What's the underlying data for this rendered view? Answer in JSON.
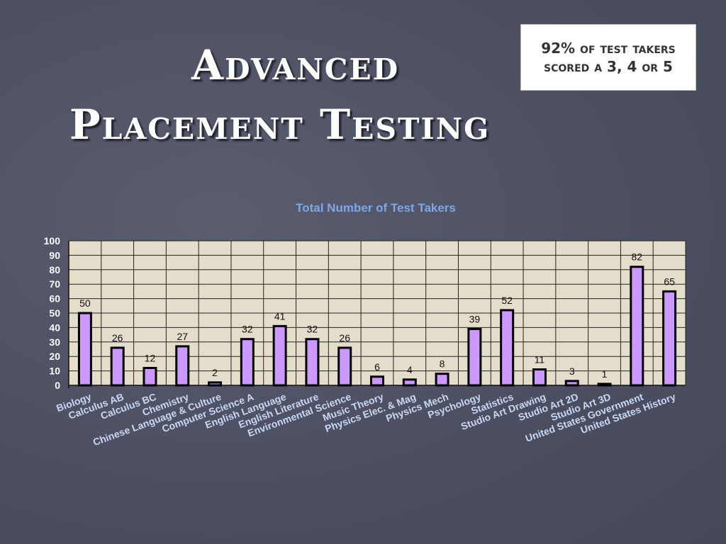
{
  "slide": {
    "title_line1": "Advanced",
    "title_line2": "Placement Testing",
    "callout": "92% of test takers scored a 3, 4 or 5"
  },
  "chart_data": {
    "type": "bar",
    "title": "Total Number of Test Takers",
    "categories": [
      "Biology",
      "Calculus AB",
      "Calculus BC",
      "Chemistry",
      "Chinese Language & Culture",
      "Computer Science A",
      "English Language",
      "English Literature",
      "Environmental Science",
      "Music Theory",
      "Physics Elec. & Mag",
      "Physics Mech",
      "Psychology",
      "Statistics",
      "Studio Art Drawing",
      "Studio Art 2D",
      "Studio Art 3D",
      "United States Government",
      "United States History"
    ],
    "values": [
      50,
      26,
      12,
      27,
      2,
      32,
      41,
      32,
      26,
      6,
      4,
      8,
      39,
      52,
      11,
      3,
      1,
      82,
      65
    ],
    "ylim": [
      0,
      100
    ],
    "yticks": [
      0,
      10,
      20,
      30,
      40,
      50,
      60,
      70,
      80,
      90,
      100
    ],
    "grid": true,
    "legend": "none",
    "colors": {
      "bar_fill": "#cc99ff",
      "bar_stroke": "#000000",
      "plot_bg": "#e4ddcc",
      "axis_label": "#c8d8f5",
      "title": "#7fa6e6"
    }
  }
}
